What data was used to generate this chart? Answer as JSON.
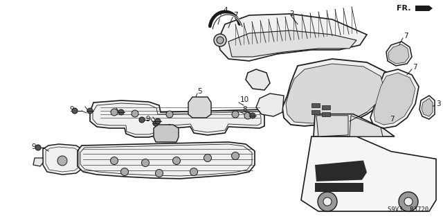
{
  "background_color": "#ffffff",
  "line_color": "#1a1a1a",
  "part_code": "S9V3  B3720",
  "fr_label": "FR.",
  "figsize": [
    6.4,
    3.19
  ],
  "dpi": 100,
  "label_fontsize": 7.5,
  "code_fontsize": 6.5
}
